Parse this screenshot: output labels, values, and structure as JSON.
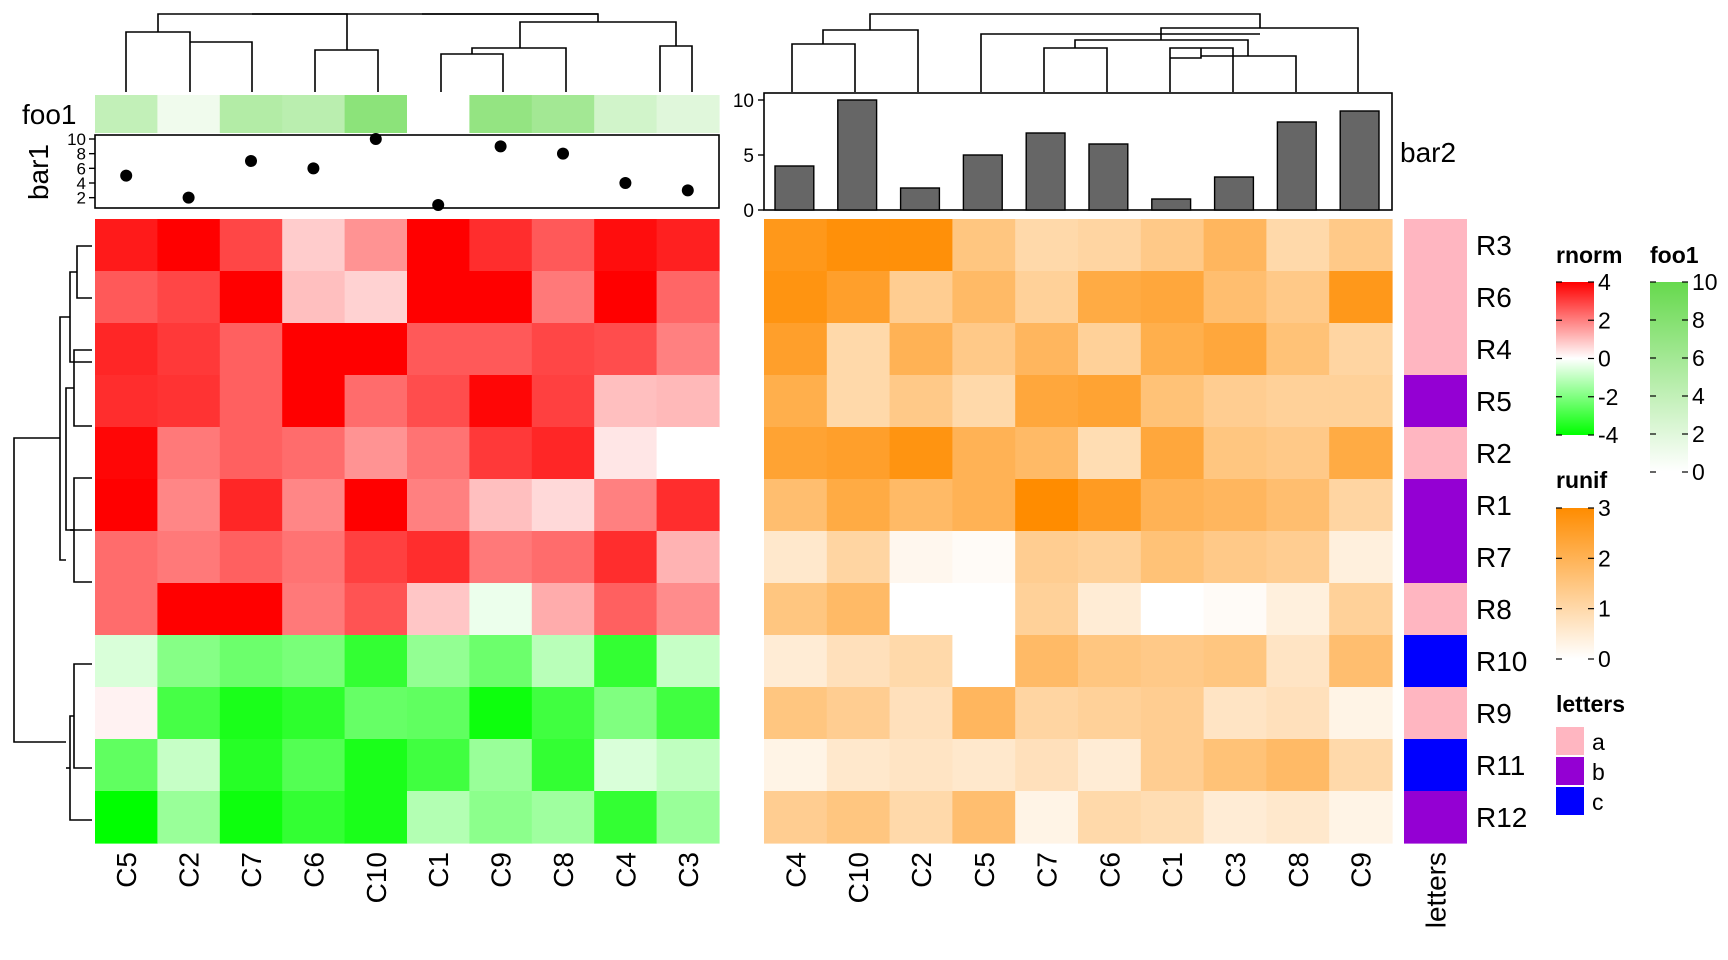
{
  "chart_data": [
    {
      "type": "heatmap",
      "name": "rnorm",
      "columns": [
        "C5",
        "C2",
        "C7",
        "C6",
        "C10",
        "C1",
        "C9",
        "C8",
        "C4",
        "C3"
      ],
      "rows": [
        "R3",
        "R6",
        "R4",
        "R5",
        "R2",
        "R1",
        "R7",
        "R8",
        "R10",
        "R9",
        "R11",
        "R12"
      ],
      "values": [
        [
          3.6,
          4.0,
          2.9,
          0.8,
          1.7,
          4.0,
          3.3,
          2.6,
          3.8,
          3.5
        ],
        [
          2.6,
          2.9,
          4.0,
          1.0,
          0.7,
          4.0,
          4.0,
          2.1,
          4.0,
          2.4
        ],
        [
          3.4,
          3.1,
          2.5,
          4.0,
          4.0,
          2.6,
          2.6,
          2.9,
          2.8,
          2.0
        ],
        [
          3.3,
          3.2,
          2.5,
          4.0,
          2.3,
          2.8,
          3.9,
          3.0,
          1.0,
          1.1
        ],
        [
          3.9,
          2.1,
          2.5,
          2.3,
          1.7,
          2.2,
          3.1,
          3.4,
          0.4,
          0.0
        ],
        [
          4.0,
          1.9,
          3.4,
          1.9,
          4.0,
          2.0,
          1.0,
          0.6,
          2.0,
          3.3
        ],
        [
          2.3,
          2.1,
          2.5,
          2.2,
          3.0,
          3.3,
          2.1,
          2.3,
          3.3,
          1.2
        ],
        [
          2.3,
          4.0,
          4.0,
          2.1,
          2.7,
          0.9,
          -0.3,
          1.3,
          2.5,
          1.8
        ],
        [
          -0.6,
          -1.9,
          -2.3,
          -2.1,
          -3.2,
          -1.7,
          -2.3,
          -1.1,
          -3.2,
          -0.9
        ],
        [
          0.2,
          -2.9,
          -3.6,
          -3.3,
          -2.4,
          -2.5,
          -3.8,
          -3.0,
          -2.0,
          -3.0
        ],
        [
          -2.5,
          -0.9,
          -3.4,
          -2.7,
          -3.6,
          -3.0,
          -1.6,
          -3.2,
          -0.6,
          -1.0
        ],
        [
          -4.0,
          -1.6,
          -3.8,
          -3.2,
          -3.6,
          -1.2,
          -1.8,
          -1.5,
          -3.2,
          -1.6
        ]
      ],
      "legend": {
        "title": "rnorm",
        "ticks": [
          4,
          2,
          0,
          -2,
          -4
        ],
        "colors": {
          "high": "#ff0000",
          "mid": "#ffffff",
          "low": "#00ff00"
        }
      },
      "top_annotations": [
        {
          "name": "foo1",
          "type": "simple",
          "values": [
            4,
            1,
            5,
            4.5,
            7.5,
            0,
            7,
            6,
            3,
            2
          ]
        },
        {
          "name": "bar1",
          "type": "points",
          "values": [
            5,
            2,
            7,
            6,
            10,
            1,
            9,
            8,
            4,
            3
          ],
          "ylim": [
            0,
            10
          ],
          "ticks": [
            10,
            8,
            6,
            4,
            2
          ]
        }
      ]
    },
    {
      "type": "heatmap",
      "name": "runif",
      "columns": [
        "C4",
        "C10",
        "C2",
        "C5",
        "C7",
        "C6",
        "C1",
        "C3",
        "C8",
        "C9"
      ],
      "rows": [
        "R3",
        "R6",
        "R4",
        "R5",
        "R2",
        "R1",
        "R7",
        "R8",
        "R10",
        "R9",
        "R11",
        "R12"
      ],
      "values": [
        [
          2.7,
          2.9,
          2.9,
          1.5,
          1.0,
          1.1,
          1.4,
          1.9,
          1.0,
          1.4
        ],
        [
          2.8,
          2.5,
          1.3,
          1.8,
          1.2,
          2.2,
          2.3,
          1.7,
          1.4,
          2.7
        ],
        [
          2.5,
          1.0,
          2.0,
          1.4,
          1.9,
          1.2,
          2.1,
          2.3,
          1.6,
          1.1
        ],
        [
          2.1,
          1.0,
          1.4,
          1.0,
          2.3,
          2.4,
          1.6,
          1.3,
          1.2,
          1.2
        ],
        [
          2.4,
          2.5,
          2.8,
          2.0,
          1.8,
          0.9,
          2.3,
          1.5,
          1.4,
          2.2
        ],
        [
          1.7,
          2.2,
          1.8,
          2.0,
          3.0,
          2.6,
          2.0,
          1.9,
          1.7,
          1.1
        ],
        [
          0.6,
          1.1,
          0.2,
          0.1,
          1.3,
          1.2,
          1.6,
          1.4,
          1.3,
          0.4
        ],
        [
          1.5,
          1.8,
          0.0,
          0.0,
          1.2,
          0.5,
          0.0,
          0.1,
          0.4,
          1.2
        ],
        [
          0.5,
          0.8,
          1.0,
          0.0,
          1.8,
          1.5,
          1.4,
          1.5,
          0.7,
          1.7
        ],
        [
          1.5,
          1.3,
          0.8,
          1.9,
          1.1,
          1.2,
          1.3,
          0.7,
          0.8,
          0.3
        ],
        [
          0.3,
          0.6,
          0.7,
          0.6,
          0.8,
          0.5,
          1.3,
          1.6,
          1.8,
          1.0
        ],
        [
          1.3,
          1.5,
          1.0,
          1.7,
          0.3,
          1.0,
          0.9,
          0.5,
          0.6,
          0.3
        ]
      ],
      "legend": {
        "title": "runif",
        "ticks": [
          3,
          2,
          1,
          0
        ],
        "colors": {
          "high": "#ff8c00",
          "low": "#ffffff"
        }
      },
      "top_annotations": [
        {
          "name": "bar2",
          "type": "bar",
          "values": [
            4,
            10,
            2,
            5,
            7,
            6,
            1,
            3,
            8,
            9
          ],
          "ylim": [
            0,
            10
          ],
          "ticks": [
            10,
            5,
            0
          ]
        }
      ]
    },
    {
      "type": "heatmap",
      "name": "letters",
      "columns": [
        "letters"
      ],
      "rows": [
        "R3",
        "R6",
        "R4",
        "R5",
        "R2",
        "R1",
        "R7",
        "R8",
        "R10",
        "R9",
        "R11",
        "R12"
      ],
      "values": [
        "a",
        "a",
        "a",
        "b",
        "a",
        "b",
        "b",
        "a",
        "c",
        "a",
        "c",
        "b"
      ],
      "legend": {
        "title": "letters",
        "levels": [
          "a",
          "b",
          "c"
        ],
        "colors": [
          "#ffb6c1",
          "#9400d3",
          "#0000ff"
        ]
      }
    }
  ],
  "legends": {
    "rnorm": {
      "title": "rnorm",
      "ticks": [
        "4",
        "2",
        "0",
        "-2",
        "-4"
      ]
    },
    "foo1": {
      "title": "foo1",
      "ticks": [
        "10",
        "8",
        "6",
        "4",
        "2",
        "0"
      ],
      "colors": {
        "high": "#66d94d",
        "low": "#ffffff"
      }
    },
    "runif": {
      "title": "runif",
      "ticks": [
        "3",
        "2",
        "1",
        "0"
      ]
    },
    "letters": {
      "title": "letters",
      "levels": [
        "a",
        "b",
        "c"
      ]
    }
  }
}
